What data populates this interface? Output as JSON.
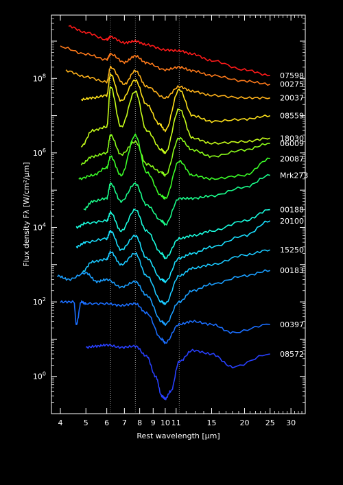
{
  "chart_data": {
    "type": "line",
    "xlabel": "Rest wavelength [μm]",
    "ylabel": "Flux density Fλ [W/cm²/μm]",
    "x_scale": "log",
    "y_scale": "log",
    "xlim": [
      3.7,
      34
    ],
    "ylim": [
      0.1,
      5000000000.0
    ],
    "x_ticks": [
      4,
      5,
      6,
      7,
      8,
      9,
      10,
      11,
      15,
      20,
      25,
      30
    ],
    "x_tick_labels": [
      "4",
      "5",
      "6",
      "7",
      "8",
      "9",
      "10",
      "11",
      "15",
      "20",
      "25",
      "30"
    ],
    "y_ticks": [
      1,
      100,
      10000,
      1000000,
      100000000
    ],
    "y_tick_labels": [
      {
        "base": "10",
        "exp": "0"
      },
      {
        "base": "10",
        "exp": "2"
      },
      {
        "base": "10",
        "exp": "4"
      },
      {
        "base": "10",
        "exp": "6"
      },
      {
        "base": "10",
        "exp": "8"
      }
    ],
    "reference_lines_x": [
      6.2,
      7.7,
      11.3
    ],
    "grid": false,
    "background": "#000000",
    "foreground": "#ffffff",
    "series": [
      {
        "name": "07598",
        "color": "#ff1a1a",
        "x": [
          4.3,
          5,
          6,
          6.2,
          7,
          7.7,
          8.5,
          10,
          11.3,
          12.7,
          15,
          20,
          25
        ],
        "y": [
          2500000000.0,
          1700000000.0,
          1100000000.0,
          1300000000.0,
          900000000.0,
          1000000000.0,
          800000000.0,
          580000000.0,
          550000000.0,
          450000000.0,
          300000000.0,
          170000000.0,
          120000000.0
        ]
      },
      {
        "name": "00275",
        "color": "#ff7a1a",
        "x": [
          4.0,
          5,
          6,
          6.2,
          7,
          7.7,
          8.5,
          10,
          11.3,
          12.7,
          15,
          20,
          25
        ],
        "y": [
          700000000.0,
          450000000.0,
          320000000.0,
          450000000.0,
          270000000.0,
          400000000.0,
          260000000.0,
          170000000.0,
          200000000.0,
          160000000.0,
          120000000.0,
          85000000.0,
          70000000.0
        ]
      },
      {
        "name": "20037",
        "color": "#ffb21a",
        "x": [
          4.2,
          5,
          6,
          6.2,
          7,
          7.7,
          8.5,
          10,
          11.3,
          12.7,
          15,
          20,
          25
        ],
        "y": [
          160000000.0,
          110000000.0,
          80000000.0,
          200000000.0,
          70000000.0,
          160000000.0,
          60000000.0,
          30000000.0,
          60000000.0,
          45000000.0,
          35000000.0,
          30000000.0,
          30000000.0
        ]
      },
      {
        "name": "08559",
        "color": "#ffe21a",
        "x": [
          4.8,
          5.3,
          6,
          6.2,
          6.8,
          7.7,
          8.5,
          9.5,
          10,
          11.3,
          12.7,
          15,
          20,
          25
        ],
        "y": [
          27000000.0,
          30000000.0,
          35000000.0,
          130000000.0,
          25000000.0,
          90000000.0,
          20000000.0,
          6000000.0,
          4000000.0,
          50000000.0,
          10000000.0,
          7000000.0,
          8000000.0,
          10000000.0
        ]
      },
      {
        "name": "18030",
        "color": "#c8ff1a",
        "x": [
          4.8,
          5.3,
          6,
          6.2,
          6.8,
          7.7,
          8.5,
          9.7,
          10,
          11.3,
          12.7,
          15,
          20,
          25
        ],
        "y": [
          1500000.0,
          4000000.0,
          5000000.0,
          60000000.0,
          5000000.0,
          45000000.0,
          4000000.0,
          1200000.0,
          1000000.0,
          15000000.0,
          2500000.0,
          1800000.0,
          2000000.0,
          2500000.0
        ]
      },
      {
        "name": "06009",
        "color": "#8cff1a",
        "x": [
          4.8,
          5.3,
          6,
          6.2,
          6.8,
          7.7,
          8.5,
          9.7,
          10,
          11.3,
          12.7,
          15,
          20,
          25
        ],
        "y": [
          500000.0,
          800000.0,
          1000000.0,
          3000000.0,
          900000.0,
          2000000.0,
          500000.0,
          300000.0,
          250000.0,
          2500000.0,
          1200000.0,
          800000.0,
          1200000.0,
          1800000.0
        ]
      },
      {
        "name": "20087",
        "color": "#3cff28",
        "x": [
          4.7,
          5.3,
          6,
          6.2,
          6.8,
          7.7,
          8.5,
          9.7,
          10,
          11.3,
          12.7,
          15,
          20,
          25
        ],
        "y": [
          200000.0,
          250000.0,
          400000.0,
          800000.0,
          250000.0,
          3000000.0,
          300000.0,
          70000.0,
          60000.0,
          600000.0,
          250000.0,
          200000.0,
          250000.0,
          700000.0
        ]
      },
      {
        "name": "Mrk273",
        "color": "#1aff8c",
        "x": [
          4.9,
          5.3,
          6,
          6.2,
          6.8,
          7.7,
          8.5,
          9.7,
          10,
          11.3,
          12.7,
          15,
          20,
          25
        ],
        "y": [
          30000.0,
          50000.0,
          60000.0,
          150000.0,
          50000.0,
          150000.0,
          40000.0,
          15000.0,
          12000.0,
          60000.0,
          60000.0,
          70000.0,
          120000.0,
          250000.0
        ]
      },
      {
        "name": "00188",
        "color": "#1affe0",
        "x": [
          4.6,
          5,
          6,
          6.2,
          6.8,
          7.7,
          8.5,
          9.7,
          10,
          11.3,
          12.7,
          15,
          20,
          25
        ],
        "y": [
          10000.0,
          13000.0,
          15000.0,
          25000.0,
          8000.0,
          30000.0,
          8000.0,
          2000.0,
          1500.0,
          5000.0,
          6000.0,
          8000.0,
          15000.0,
          30000.0
        ]
      },
      {
        "name": "20100",
        "color": "#1ae0ff",
        "x": [
          4.6,
          5,
          6,
          6.2,
          6.8,
          7.7,
          8.5,
          9.7,
          10,
          11.3,
          12.7,
          15,
          20,
          25
        ],
        "y": [
          3000.0,
          4000.0,
          5000.0,
          8000.0,
          2500.0,
          6000.0,
          1500.0,
          400.0,
          350.0,
          1500.0,
          2000.0,
          3000.0,
          6000.0,
          15000.0
        ]
      },
      {
        "name": "15250",
        "color": "#1ac8ff",
        "x": [
          4.8,
          5.3,
          6,
          6.2,
          6.8,
          7.7,
          8.5,
          9.7,
          10,
          11.3,
          12.7,
          15,
          20,
          25
        ],
        "y": [
          600.0,
          1200.0,
          1400.0,
          2200.0,
          1000.0,
          2000.0,
          500.0,
          100.0,
          90.0,
          500.0,
          800.0,
          1000.0,
          1800.0,
          2500.0
        ]
      },
      {
        "name": "00183",
        "color": "#1a9eff",
        "x": [
          3.9,
          4.3,
          5,
          5.5,
          6,
          6.8,
          7.7,
          8.5,
          9.7,
          10,
          11.3,
          12.7,
          15,
          20,
          25
        ],
        "y": [
          500.0,
          400.0,
          600.0,
          350.0,
          400.0,
          250.0,
          350.0,
          150.0,
          30.0,
          25.0,
          100.0,
          200.0,
          300.0,
          500.0,
          700.0
        ]
      },
      {
        "name": "00397",
        "color": "#1a6eff",
        "x": [
          4.0,
          4.5,
          4.6,
          4.8,
          5,
          6,
          6.8,
          7.7,
          8.5,
          9.7,
          10,
          11.3,
          12.7,
          15,
          18,
          25
        ],
        "y": [
          100.0,
          100.0,
          25.0,
          100.0,
          90.0,
          90.0,
          80.0,
          90.0,
          50.0,
          10.0,
          8,
          25.0,
          30.0,
          25.0,
          15.0,
          25.0
        ]
      },
      {
        "name": "08572",
        "color": "#2840ff",
        "x": [
          5.0,
          5.5,
          6,
          6.8,
          7.7,
          8.5,
          9.2,
          9.7,
          10,
          10.5,
          11.3,
          12.7,
          15,
          18,
          25
        ],
        "y": [
          6,
          6.5,
          7,
          6,
          6.5,
          3.5,
          1,
          0.3,
          0.25,
          0.4,
          2.5,
          5,
          4,
          1.8,
          4
        ]
      }
    ]
  }
}
